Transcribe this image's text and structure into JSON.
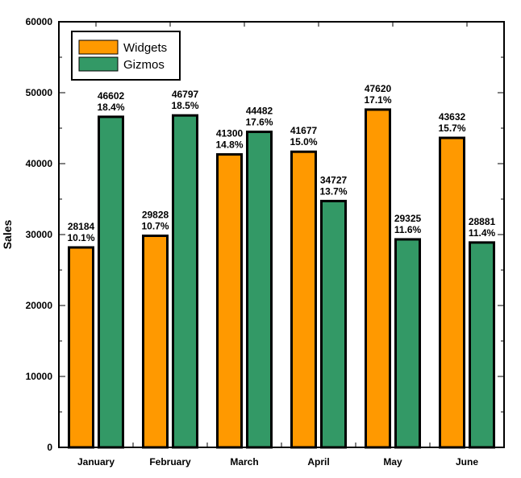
{
  "chart_data": {
    "type": "bar",
    "title": "",
    "xlabel": "",
    "ylabel": "Sales",
    "ylim": [
      0,
      60000
    ],
    "yticks": [
      0,
      10000,
      20000,
      30000,
      40000,
      50000,
      60000
    ],
    "categories": [
      "January",
      "February",
      "March",
      "April",
      "May",
      "June"
    ],
    "series": [
      {
        "name": "Widgets",
        "color": "#ff9900",
        "values": [
          28184,
          29828,
          41300,
          41677,
          47620,
          43632
        ],
        "percent_labels": [
          "10.1%",
          "10.7%",
          "14.8%",
          "15.0%",
          "17.1%",
          "15.7%"
        ]
      },
      {
        "name": "Gizmos",
        "color": "#339966",
        "values": [
          46602,
          46797,
          44482,
          34727,
          29325,
          28881
        ],
        "percent_labels": [
          "18.4%",
          "18.5%",
          "17.6%",
          "13.7%",
          "11.6%",
          "11.4%"
        ]
      }
    ],
    "legend_position": "top-left",
    "grid": false,
    "bar_outline_color": "#000000"
  }
}
